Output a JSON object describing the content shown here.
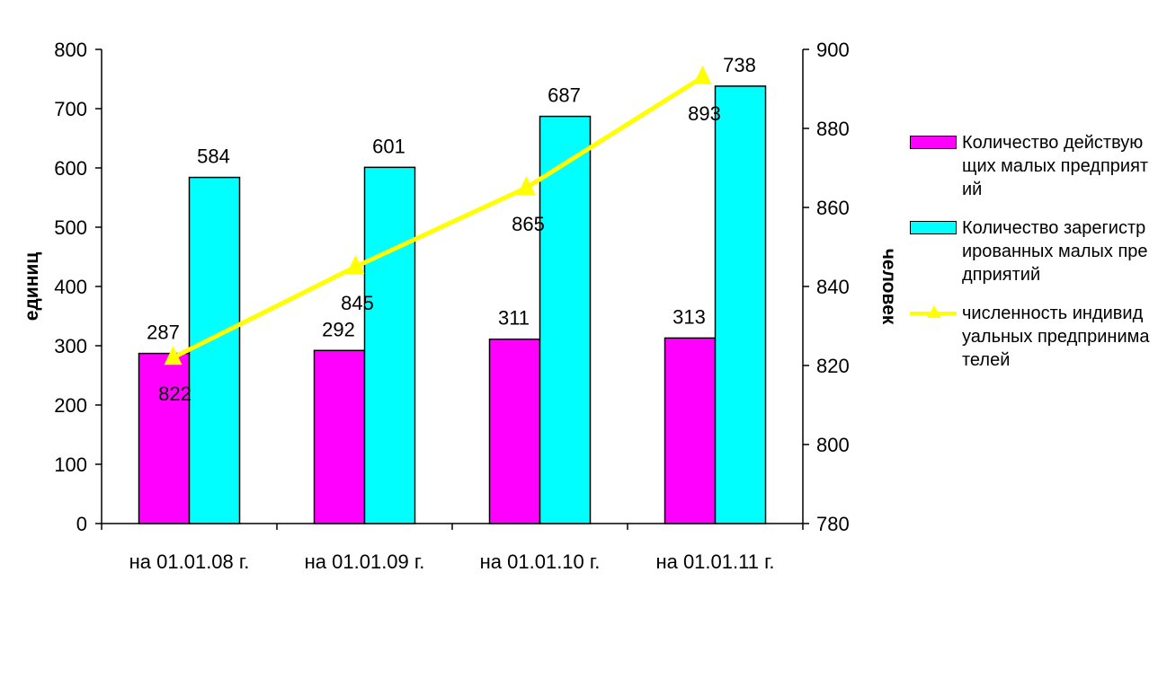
{
  "chart_data": {
    "type": "bar",
    "categories": [
      "на 01.01.08 г.",
      "на 01.01.09 г.",
      "на 01.01.10 г.",
      "на 01.01.11 г."
    ],
    "series": [
      {
        "name": "Количество действующих малых предприятий",
        "type": "bar",
        "axis": "left",
        "color": "#ff00ff",
        "values": [
          287,
          292,
          311,
          313
        ]
      },
      {
        "name": "Количество зарегистрированных малых предприятий",
        "type": "bar",
        "axis": "left",
        "color": "#00ffff",
        "values": [
          584,
          601,
          687,
          738
        ]
      },
      {
        "name": "численность индивидуальных предпринимателей",
        "type": "line",
        "axis": "right",
        "color": "#ffff00",
        "marker": "triangle",
        "values": [
          822,
          845,
          865,
          893
        ]
      }
    ],
    "ylabel": "единиц",
    "ylabel_right": "человек",
    "ylim": [
      0,
      800
    ],
    "yticks": [
      0,
      100,
      200,
      300,
      400,
      500,
      600,
      700,
      800
    ],
    "ylim_right": [
      780,
      900
    ],
    "yticks_right": [
      780,
      800,
      820,
      840,
      860,
      880,
      900
    ],
    "grid": false,
    "legend_position": "right",
    "legend_labels": [
      "Количество действующих малых предприятий",
      "Количество зарегистрированных малых предприятий",
      "численность индивидуальных предпринимателей"
    ]
  }
}
